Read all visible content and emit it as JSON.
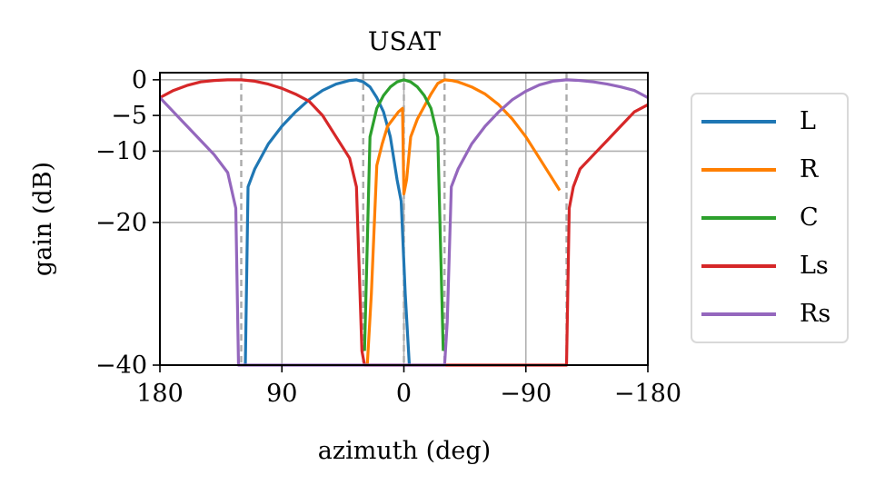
{
  "chart_data": {
    "type": "line",
    "title": "USAT",
    "xlabel": "azimuth (deg)",
    "ylabel": "gain (dB)",
    "xlim": [
      180,
      -180
    ],
    "ylim": [
      -40,
      1
    ],
    "xticks": [
      180,
      90,
      0,
      -90,
      -180
    ],
    "xtick_labels": [
      "180",
      "90",
      "0",
      "−90",
      "−180"
    ],
    "yticks": [
      0,
      -5,
      -10,
      -20,
      -40
    ],
    "ytick_labels": [
      "0",
      "−5",
      "−10",
      "−20",
      "−40"
    ],
    "grid": true,
    "legend_position": "right",
    "reference_lines_deg": [
      120,
      30,
      0,
      -30,
      -120
    ],
    "series": [
      {
        "name": "L",
        "color": "#1f77b4",
        "x": [
          117,
          115,
          110,
          100,
          90,
          80,
          70,
          60,
          50,
          40,
          35,
          30,
          25,
          20,
          15,
          10,
          5,
          2,
          -1,
          -4
        ],
        "y": [
          -40,
          -15,
          -12.5,
          -9,
          -6.5,
          -4.5,
          -2.8,
          -1.5,
          -0.6,
          -0.1,
          0,
          -0.3,
          -1,
          -2.5,
          -4.5,
          -8,
          -14,
          -17,
          -30,
          -40
        ]
      },
      {
        "name": "R",
        "color": "#ff7f00",
        "x": [
          27,
          24,
          20,
          16,
          12,
          8,
          4,
          1,
          0,
          -2,
          -5,
          -10,
          -20,
          -25,
          -30,
          -35,
          -40,
          -50,
          -60,
          -70,
          -80,
          -90,
          -100,
          -110,
          -115
        ],
        "y": [
          -40,
          -30,
          -12,
          -9,
          -6.5,
          -5.5,
          -4.5,
          -4,
          -16,
          -14,
          -8,
          -5.5,
          -2,
          -0.5,
          0,
          -0.1,
          -0.3,
          -1,
          -2,
          -3.5,
          -5.5,
          -8,
          -11,
          -14,
          -15.5
        ]
      },
      {
        "name": "C",
        "color": "#2ca02c",
        "x": [
          29,
          25,
          20,
          15,
          10,
          5,
          0,
          -5,
          -10,
          -15,
          -20,
          -25,
          -29
        ],
        "y": [
          -38,
          -8,
          -4,
          -2.2,
          -1,
          -0.3,
          0,
          -0.3,
          -1,
          -2.2,
          -4,
          -8,
          -38
        ]
      },
      {
        "name": "Ls",
        "color": "#d62728",
        "x": [
          180,
          170,
          160,
          150,
          140,
          130,
          120,
          110,
          100,
          90,
          80,
          70,
          60,
          50,
          40,
          35,
          31,
          29,
          -120,
          -122,
          -125,
          -130,
          -140,
          -150,
          -160,
          -170,
          -180
        ],
        "y": [
          -2.5,
          -1.5,
          -0.8,
          -0.3,
          -0.1,
          0,
          0,
          -0.2,
          -0.6,
          -1.2,
          -2,
          -3,
          -5,
          -8,
          -11,
          -15,
          -38,
          -40,
          -40,
          -18,
          -15,
          -12.5,
          -10.5,
          -8.5,
          -6.5,
          -4.5,
          -3.5
        ]
      },
      {
        "name": "Rs",
        "color": "#9467bd",
        "x": [
          180,
          170,
          160,
          150,
          140,
          130,
          124,
          122,
          120,
          -30,
          -32,
          -35,
          -40,
          -50,
          -60,
          -70,
          -80,
          -90,
          -100,
          -110,
          -120,
          -130,
          -140,
          -150,
          -160,
          -170,
          -180
        ],
        "y": [
          -2.5,
          -4.5,
          -6.5,
          -8.5,
          -10.5,
          -13,
          -18,
          -40,
          -40,
          -40,
          -34,
          -15,
          -12.5,
          -9,
          -6.5,
          -4.5,
          -2.8,
          -1.6,
          -0.7,
          -0.2,
          0,
          -0.1,
          -0.3,
          -0.6,
          -1,
          -1.5,
          -2.5
        ]
      }
    ]
  }
}
